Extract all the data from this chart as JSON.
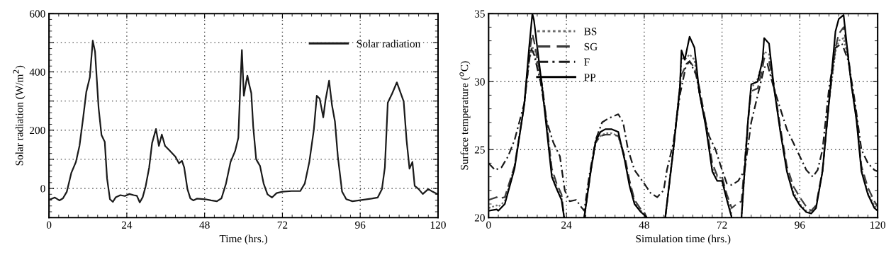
{
  "chart_data": [
    {
      "type": "line",
      "xlabel": "Time (hrs.)",
      "ylabel": "Solar radiation (W/m$^{2}$)",
      "xlim": [
        0,
        120
      ],
      "xticks": [
        0,
        24,
        48,
        72,
        96,
        120
      ],
      "ylim": [
        -100,
        600
      ],
      "yticks": [
        0,
        {
          "value": 100,
          "label": null
        },
        200,
        {
          "value": 300,
          "label": null
        },
        400,
        {
          "value": 500,
          "label": null
        },
        600
      ],
      "grid": true,
      "legend": "top right",
      "line_style": "solid",
      "x": [
        0.5,
        1.8,
        3.2,
        4.3,
        5.5,
        6.9,
        8.3,
        9.4,
        10.5,
        11.5,
        12.6,
        13.5,
        14.2,
        15.3,
        16.2,
        17.2,
        17.9,
        18.8,
        19.7,
        20.6,
        22,
        23.4,
        24.8,
        26.1,
        27.1,
        28,
        28.9,
        29.8,
        30.9,
        31.8,
        33,
        33.9,
        34.8,
        35.8,
        37.2,
        39,
        40.1,
        41,
        41.7,
        42.7,
        43.6,
        44.5,
        45.6,
        48.2,
        50,
        51.8,
        53.2,
        54.6,
        56,
        57.4,
        58.4,
        59,
        59.5,
        60.1,
        60.8,
        61.2,
        61.7,
        62.4,
        63,
        63.9,
        65.1,
        66.2,
        67.4,
        68.8,
        70.2,
        72,
        74.8,
        77.5,
        78.9,
        80.3,
        81.7,
        82.6,
        83.5,
        84.6,
        85.3,
        86.4,
        87.3,
        88.2,
        89.1,
        90.4,
        91.7,
        93.6,
        96.8,
        99.5,
        101.4,
        102.7,
        103.6,
        104.5,
        105.9,
        107.3,
        109.4,
        110.3,
        111.2,
        112.1,
        112.8,
        114,
        115.3,
        117,
        118.3,
        119.7
      ],
      "series": [
        {
          "name": "Solar radiation",
          "color": "#1a1a1a",
          "values": [
            -37,
            -31,
            -41,
            -34,
            -11,
            54,
            91,
            146,
            239,
            331,
            382,
            507,
            470,
            276,
            183,
            160,
            35,
            -37,
            -46,
            -30,
            -23,
            -26,
            -19,
            -23,
            -25,
            -48,
            -30,
            7,
            72,
            156,
            204,
            146,
            185,
            146,
            130,
            109,
            86,
            95,
            72,
            -2,
            -34,
            -41,
            -35,
            -37,
            -41,
            -44,
            -34,
            17,
            91,
            128,
            174,
            350,
            475,
            318,
            364,
            387,
            359,
            327,
            211,
            100,
            77,
            17,
            -20,
            -31,
            -16,
            -11,
            -9,
            -9,
            17,
            91,
            202,
            318,
            308,
            244,
            304,
            370,
            285,
            230,
            109,
            -11,
            -37,
            -44,
            -39,
            -35,
            -31,
            -2,
            72,
            294,
            327,
            364,
            299,
            165,
            68,
            91,
            9,
            -2,
            -19,
            -2,
            -11,
            -19
          ]
        }
      ]
    },
    {
      "type": "line",
      "xlabel": "Simulation time (hrs.)",
      "ylabel": "Surface temperature ($^{o}$C)",
      "xlim": [
        0,
        120
      ],
      "xticks": [
        0,
        24,
        48,
        72,
        96,
        120
      ],
      "ylim": [
        20,
        35
      ],
      "yticks": [
        20,
        25,
        30,
        35
      ],
      "grid": true,
      "legend": "top left",
      "x": [
        0,
        2.5,
        3,
        5,
        8,
        11,
        12.5,
        13.5,
        14,
        16.5,
        18,
        19.5,
        21,
        22.5,
        23.3,
        26,
        29.5,
        31.5,
        33,
        34.5,
        36,
        38,
        40,
        42,
        43.5,
        45,
        47,
        48,
        48.8,
        52,
        54.5,
        57,
        59,
        59.5,
        60.5,
        62,
        63.5,
        65,
        67,
        69,
        70.5,
        72,
        73.5,
        75,
        76.5,
        78,
        80,
        81,
        83,
        84.5,
        85,
        86.5,
        88,
        90,
        92,
        94,
        96,
        98,
        99.5,
        101,
        103,
        105,
        107,
        108,
        109.5,
        111,
        112,
        113.5,
        115,
        117,
        119,
        120
      ],
      "series": [
        {
          "name": "BS",
          "color": "#6e6e6e",
          "line_style": "dotted",
          "values": [
            20.7,
            20.9,
            20.8,
            21.2,
            23.8,
            28.3,
            31.5,
            32.6,
            32.2,
            29.8,
            26.6,
            23.3,
            22.3,
            21.5,
            20,
            null,
            20,
            23.5,
            25.5,
            26.0,
            26.2,
            26.2,
            26.0,
            24.3,
            22.5,
            21.2,
            20.5,
            20.3,
            20,
            null,
            20,
            25.2,
            29.6,
            31.8,
            31.6,
            32.0,
            31.6,
            29.2,
            26.8,
            23.6,
            23.0,
            22.9,
            21.5,
            20.2,
            null,
            20,
            27.0,
            29.5,
            30.2,
            31.5,
            32.2,
            32.0,
            29.6,
            26.4,
            23.5,
            21.9,
            21.0,
            20.5,
            20.4,
            20.8,
            23.4,
            28.5,
            32.2,
            33.0,
            33.2,
            31.6,
            29.6,
            27.3,
            23.6,
            21.8,
            20.9,
            20.6
          ]
        },
        {
          "name": "SG",
          "color": "#3c3c3c",
          "line_style": "dashed",
          "values": [
            21.3,
            21.5,
            21.4,
            21.5,
            23.8,
            28.3,
            32.0,
            33.5,
            33.0,
            29.8,
            26.8,
            23.6,
            22.5,
            21.7,
            20,
            null,
            20,
            23.4,
            25.5,
            26.0,
            26.1,
            26.1,
            26.0,
            24.5,
            22.7,
            21.3,
            20.6,
            20.4,
            20,
            null,
            20,
            25.0,
            29.5,
            30.5,
            31.0,
            31.5,
            31.0,
            29.6,
            27.0,
            24.0,
            23.1,
            23.0,
            21.7,
            20.7,
            21.0,
            21.2,
            27.0,
            29.3,
            29.5,
            31.0,
            31.7,
            31.5,
            29.8,
            26.6,
            23.8,
            22.3,
            21.5,
            20.8,
            20.5,
            20.9,
            23.5,
            28.5,
            32.5,
            33.5,
            34.0,
            31.8,
            29.8,
            27.4,
            23.8,
            22.2,
            21.2,
            20.8
          ]
        },
        {
          "name": "F",
          "color": "#1a1a1a",
          "line_style": "dashdot",
          "x": [
            0,
            2,
            4,
            6,
            8,
            11,
            13,
            14,
            16,
            18,
            20,
            22,
            23.5,
            25,
            27,
            28.5,
            29.5,
            31,
            33,
            35,
            37,
            40,
            41.5,
            43,
            45,
            48,
            50,
            52,
            54,
            55,
            57,
            59,
            61,
            62,
            64,
            66,
            68,
            70,
            72,
            73.5,
            75,
            77,
            79,
            81,
            83,
            85,
            86,
            88,
            90,
            92,
            94,
            96,
            98,
            100,
            101.5,
            103,
            105,
            107,
            109,
            111,
            113,
            115,
            117,
            119,
            120
          ],
          "values": [
            24.0,
            23.5,
            23.7,
            24.5,
            25.7,
            28.4,
            32.5,
            32.0,
            30.0,
            27.0,
            25.5,
            24.5,
            22.0,
            21.2,
            21.3,
            20.8,
            20.5,
            23.0,
            25.7,
            27.0,
            27.3,
            27.6,
            27.0,
            25.0,
            23.5,
            22.5,
            21.8,
            21.5,
            22.0,
            23.5,
            25.5,
            29.0,
            31.3,
            31.5,
            30.5,
            28.0,
            26.0,
            25.0,
            23.5,
            22.5,
            22.4,
            22.7,
            23.5,
            27.0,
            29.0,
            31.0,
            31.3,
            29.5,
            28.0,
            26.5,
            25.5,
            24.5,
            23.5,
            23.0,
            23.5,
            25.0,
            29.5,
            32.5,
            32.8,
            31.5,
            28.5,
            25.0,
            24.0,
            23.5,
            23.4
          ]
        },
        {
          "name": "PP",
          "color": "#000000",
          "line_style": "solid",
          "values": [
            20.5,
            20.6,
            20.5,
            21.0,
            23.6,
            28.3,
            32.5,
            35.0,
            34.5,
            29.6,
            26.3,
            23.0,
            22.1,
            21.3,
            20,
            null,
            20,
            23.4,
            25.6,
            26.3,
            26.5,
            26.5,
            26.3,
            24.2,
            22.3,
            21.0,
            20.4,
            20.2,
            20,
            null,
            20,
            25.0,
            29.6,
            32.3,
            31.6,
            33.3,
            32.5,
            29.2,
            26.7,
            23.4,
            22.7,
            22.7,
            21.3,
            20,
            null,
            20,
            27.1,
            29.8,
            30.0,
            31.6,
            33.2,
            32.8,
            29.6,
            26.3,
            23.4,
            21.7,
            20.9,
            20.4,
            20.3,
            20.7,
            23.4,
            28.5,
            33.7,
            34.6,
            34.9,
            31.6,
            29.6,
            27.1,
            23.4,
            21.7,
            20.7,
            20.5
          ]
        }
      ]
    }
  ]
}
